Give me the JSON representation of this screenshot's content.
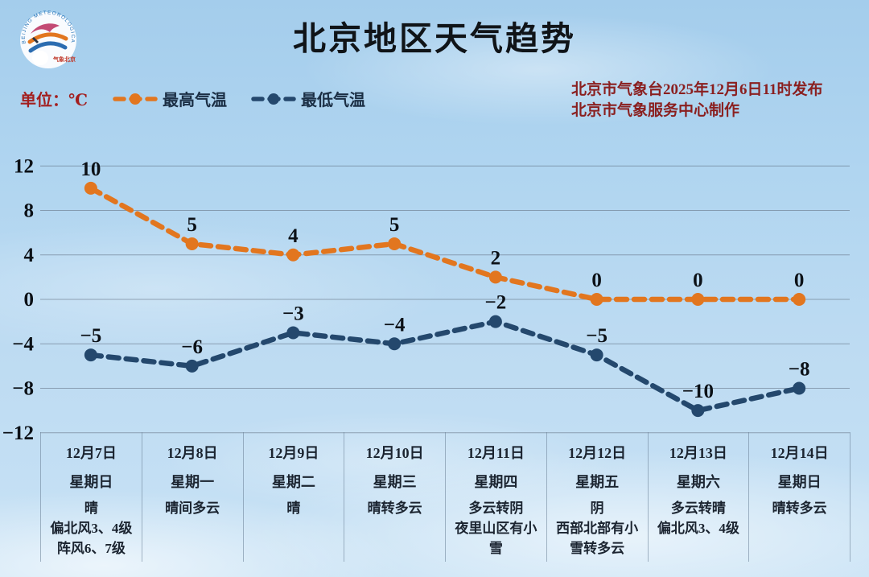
{
  "header": {
    "title": "北京地区天气趋势",
    "unit_label": "单位：℃",
    "issued_line1": "北京市气象台2025年12月6日11时发布",
    "issued_line2": "北京市气象服务中心制作",
    "logo": {
      "ring_text": "BEIJING METEOROLOGICAL SERVICE",
      "seal_text": "气象北京"
    }
  },
  "legend": [
    {
      "label": "最高气温",
      "color": "#e2761f"
    },
    {
      "label": "最低气温",
      "color": "#24486d"
    }
  ],
  "chart_data": {
    "type": "line",
    "title": "北京地区天气趋势",
    "unit": "℃",
    "categories": [
      "12月7日",
      "12月8日",
      "12月9日",
      "12月10日",
      "12月11日",
      "12月12日",
      "12月13日",
      "12月14日"
    ],
    "series": [
      {
        "name": "最高气温",
        "color": "#e2761f",
        "values": [
          10,
          5,
          4,
          5,
          2,
          0,
          0,
          0
        ]
      },
      {
        "name": "最低气温",
        "color": "#24486d",
        "values": [
          -5,
          -6,
          -3,
          -4,
          -2,
          -5,
          -10,
          -8
        ]
      }
    ],
    "ylim": [
      -12,
      12
    ],
    "yticks": [
      12,
      8,
      4,
      0,
      -4,
      -8,
      -12
    ],
    "grid": true,
    "legend_position": "top-left",
    "line_style": "dashed-with-dot-markers"
  },
  "table": {
    "columns": [
      {
        "date": "12月7日",
        "weekday": "星期日",
        "weather_lines": [
          "晴",
          "偏北风3、4级",
          "阵风6、7级"
        ]
      },
      {
        "date": "12月8日",
        "weekday": "星期一",
        "weather_lines": [
          "晴间多云"
        ]
      },
      {
        "date": "12月9日",
        "weekday": "星期二",
        "weather_lines": [
          "晴"
        ]
      },
      {
        "date": "12月10日",
        "weekday": "星期三",
        "weather_lines": [
          "晴转多云"
        ]
      },
      {
        "date": "12月11日",
        "weekday": "星期四",
        "weather_lines": [
          "多云转阴",
          "夜里山区有小",
          "雪"
        ]
      },
      {
        "date": "12月12日",
        "weekday": "星期五",
        "weather_lines": [
          "阴",
          "西部北部有小",
          "雪转多云"
        ]
      },
      {
        "date": "12月13日",
        "weekday": "星期六",
        "weather_lines": [
          "多云转晴",
          "偏北风3、4级"
        ]
      },
      {
        "date": "12月14日",
        "weekday": "星期日",
        "weather_lines": [
          "晴转多云"
        ]
      }
    ]
  },
  "colors": {
    "title": "#101418",
    "issue_text": "#8a1f1f",
    "max_temp": "#e2761f",
    "min_temp": "#24486d",
    "grid": "#5c6c7c",
    "table_text": "#1b2430"
  }
}
